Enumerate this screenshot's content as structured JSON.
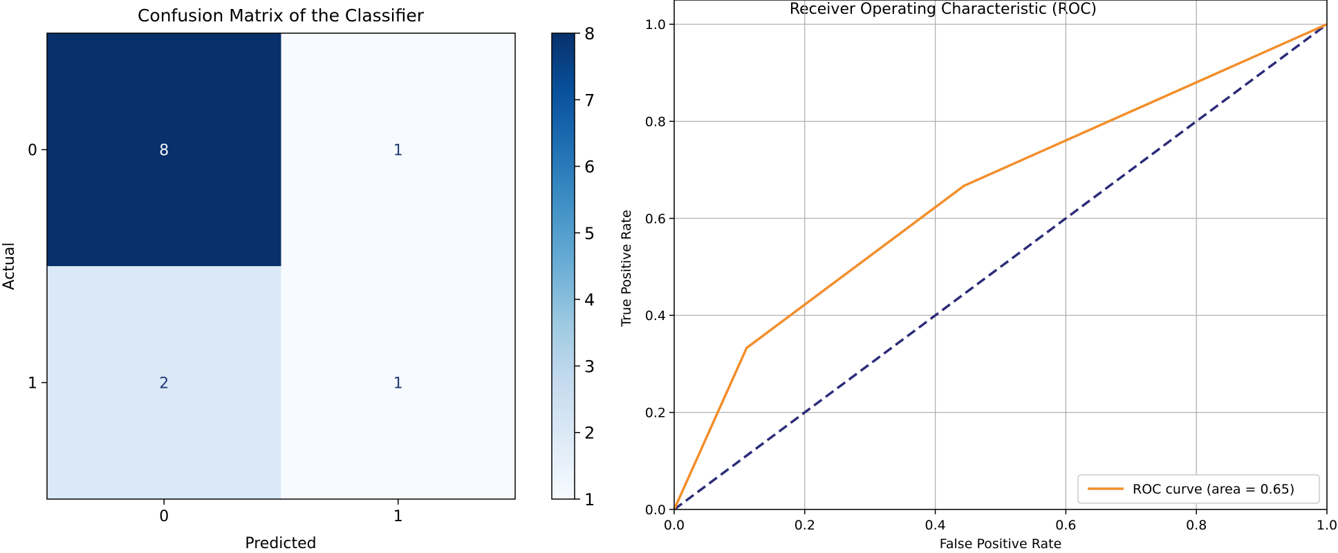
{
  "chart_data": [
    {
      "type": "heatmap",
      "title": "Confusion Matrix of the Classifier",
      "xlabel": "Predicted",
      "ylabel": "Actual",
      "x_categories": [
        "0",
        "1"
      ],
      "y_categories": [
        "0",
        "1"
      ],
      "cells": [
        {
          "label": "8",
          "row": 0,
          "col": 0,
          "value": 8
        },
        {
          "label": "1",
          "row": 0,
          "col": 1,
          "value": 1
        },
        {
          "label": "2",
          "row": 1,
          "col": 0,
          "value": 2
        },
        {
          "label": "1",
          "row": 1,
          "col": 1,
          "value": 1
        }
      ],
      "colormap": "Blues",
      "colorbar": {
        "range": [
          1,
          8
        ],
        "ticks": [
          "1",
          "2",
          "3",
          "4",
          "5",
          "6",
          "7",
          "8"
        ],
        "colors": [
          "#f7fbff",
          "#deebf7",
          "#c6dbef",
          "#9ecae1",
          "#6baed6",
          "#4292c6",
          "#2171b5",
          "#08519c",
          "#08306b"
        ]
      }
    },
    {
      "type": "line",
      "title": "Receiver Operating Characteristic (ROC)",
      "xlabel": "False Positive Rate",
      "ylabel": "True Positive Rate",
      "xlim": [
        0.0,
        1.0
      ],
      "ylim": [
        0.0,
        1.05
      ],
      "grid": true,
      "legend_position": "lower-right",
      "x_ticks": [
        "0.0",
        "0.2",
        "0.4",
        "0.6",
        "0.8",
        "1.0"
      ],
      "y_ticks": [
        "0.0",
        "0.2",
        "0.4",
        "0.6",
        "0.8",
        "1.0"
      ],
      "series": [
        {
          "name": "ROC curve (area = 0.65)",
          "color": "#f28e2b",
          "style": "solid",
          "x": [
            0.0,
            0.111,
            0.444,
            1.0
          ],
          "y": [
            0.0,
            0.333,
            0.667,
            1.0
          ]
        },
        {
          "color": "#2c2c7a",
          "style": "dashed",
          "x": [
            0.0,
            1.0
          ],
          "y": [
            0.0,
            1.0
          ]
        }
      ]
    }
  ]
}
